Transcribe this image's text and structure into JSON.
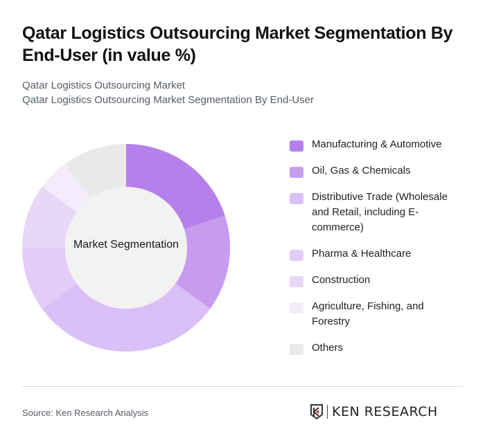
{
  "header": {
    "title": "Qatar Logistics Outsourcing Market Segmentation By End-User (in value %)",
    "subtitle_line1": "Qatar Logistics Outsourcing Market",
    "subtitle_line2": "Qatar Logistics Outsourcing Market Segmentation By End-User"
  },
  "chart": {
    "center_label": "Market Segmentation"
  },
  "legend": [
    {
      "label": "Manufacturing & Automotive",
      "color": "#b580eb"
    },
    {
      "label": "Oil, Gas & Chemicals",
      "color": "#c79cef"
    },
    {
      "label": "Distributive Trade (Wholesale and Retail, including E-commerce)",
      "color": "#dbbff7"
    },
    {
      "label": "Pharma & Healthcare",
      "color": "#e3cdf8"
    },
    {
      "label": "Construction",
      "color": "#e8d7f9"
    },
    {
      "label": "Agriculture, Fishing, and Forestry",
      "color": "#f3ecfc"
    },
    {
      "label": "Others",
      "color": "#e9e9e9"
    }
  ],
  "footer": {
    "source": "Source: Ken Research Analysis",
    "logo_text": "KEN RESEARCH"
  },
  "chart_data": {
    "type": "pie",
    "subtype": "donut",
    "title": "Qatar Logistics Outsourcing Market Segmentation By End-User (in value %)",
    "center_text": "Market Segmentation",
    "categories": [
      "Manufacturing & Automotive",
      "Oil, Gas & Chemicals",
      "Distributive Trade (Wholesale and Retail, including E-commerce)",
      "Pharma & Healthcare",
      "Construction",
      "Agriculture, Fishing, and Forestry",
      "Others"
    ],
    "values": [
      20,
      15,
      30,
      10,
      10,
      5,
      10
    ],
    "colors": [
      "#b580eb",
      "#c79cef",
      "#dbbff7",
      "#e3cdf8",
      "#e8d7f9",
      "#f3ecfc",
      "#e9e9e9"
    ],
    "unit": "%",
    "legend_position": "right"
  }
}
